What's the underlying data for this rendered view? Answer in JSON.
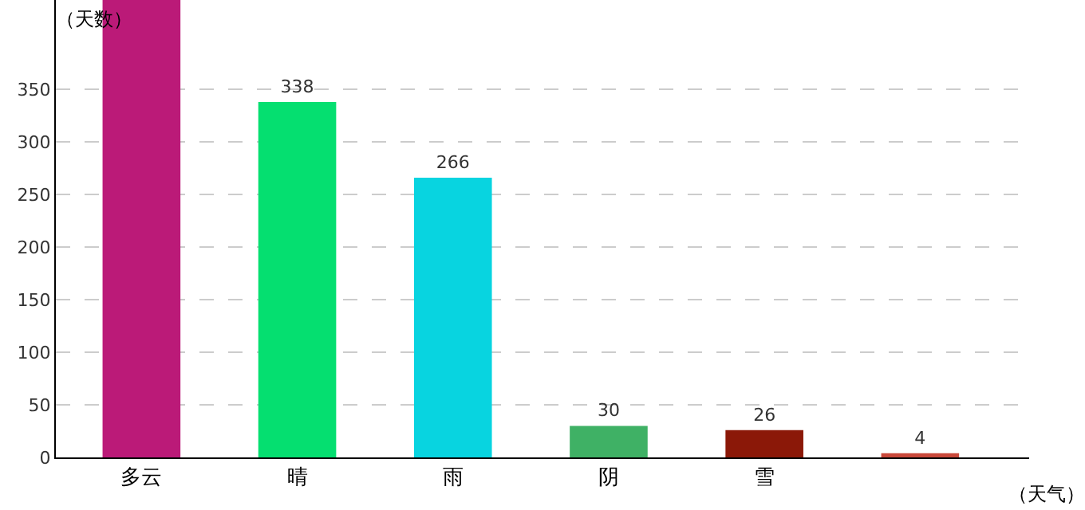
{
  "chart_data": {
    "type": "bar",
    "xlabel": "（天气）",
    "ylabel": "（天数）",
    "categories": [
      "多云",
      "晴",
      "雨",
      "阴",
      "雪",
      null
    ],
    "values": [
      435,
      338,
      266,
      30,
      26,
      4
    ],
    "value_labels": [
      null,
      "338",
      "266",
      "30",
      "26",
      "4"
    ],
    "colors": [
      "#bb1a78",
      "#05df70",
      "#08d4e0",
      "#3fb165",
      "#8b1808",
      "#c9483a"
    ],
    "ylim": [
      0,
      435
    ],
    "yticks": [
      0,
      50,
      100,
      150,
      200,
      250,
      300,
      350
    ],
    "grid": "y"
  }
}
